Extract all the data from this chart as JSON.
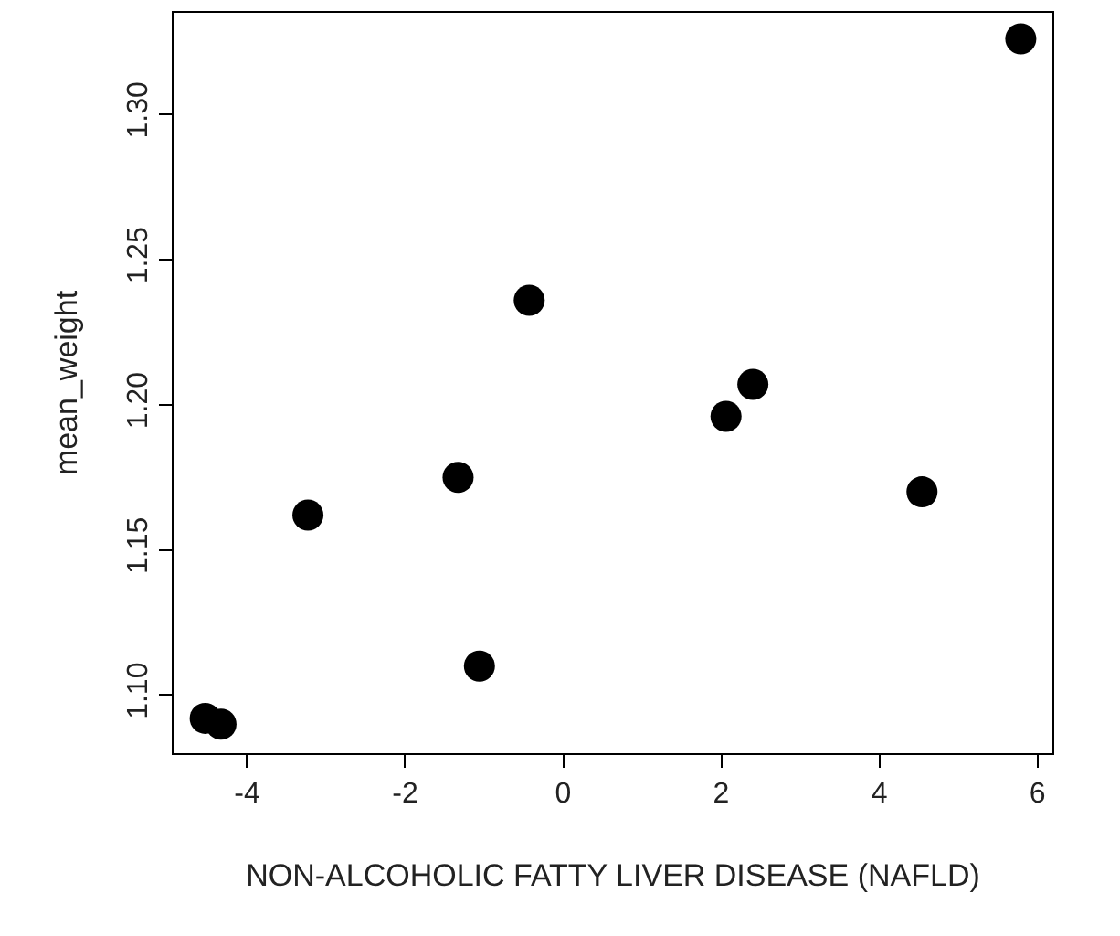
{
  "chart_data": {
    "type": "scatter",
    "xlabel": "NON-ALCOHOLIC FATTY LIVER DISEASE (NAFLD)",
    "ylabel": "mean_weight",
    "x": [
      -4.53,
      -4.33,
      -3.23,
      -1.33,
      -1.06,
      -0.43,
      2.06,
      2.4,
      4.54,
      5.79
    ],
    "series": [
      {
        "color": "#000000",
        "values": [
          1.092,
          1.09,
          1.162,
          1.175,
          1.11,
          1.236,
          1.196,
          1.207,
          1.17,
          1.326
        ]
      }
    ],
    "xlim": [
      -4.93,
      6.19
    ],
    "ylim": [
      1.08,
      1.335
    ],
    "xticks": [
      -4,
      -2,
      0,
      2,
      4,
      6
    ],
    "yticks": [
      {
        "value": 1.1,
        "label": "1.10"
      },
      1.15,
      {
        "value": 1.2,
        "label": "1.20"
      },
      1.25,
      {
        "value": 1.3,
        "label": "1.30"
      }
    ],
    "legend": false,
    "marker": "circle"
  }
}
